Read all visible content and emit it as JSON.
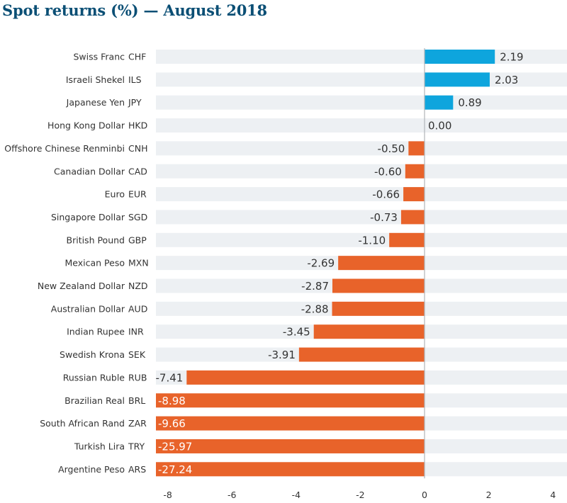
{
  "chart_data": {
    "type": "bar",
    "orientation": "horizontal",
    "title": "Spot returns (%) — August 2018",
    "xlabel": "",
    "ylabel": "",
    "xlim": [
      -8,
      4
    ],
    "xticks": [
      -8,
      -6,
      -4,
      -2,
      0,
      2,
      4
    ],
    "clip_min": -8,
    "grid": false,
    "colors": {
      "positive": "#0ea5dd",
      "negative": "#e8632a",
      "track": "#edf0f3",
      "axis": "#b0b4b8"
    },
    "categories": [
      {
        "name": "Swiss Franc",
        "code": "CHF",
        "value": 2.19,
        "label": "2.19"
      },
      {
        "name": "Israeli Shekel",
        "code": "ILS",
        "value": 2.03,
        "label": "2.03"
      },
      {
        "name": "Japanese Yen",
        "code": "JPY",
        "value": 0.89,
        "label": "0.89"
      },
      {
        "name": "Hong Kong Dollar",
        "code": "HKD",
        "value": 0.0,
        "label": "0.00"
      },
      {
        "name": "Offshore Chinese Renminbi",
        "code": "CNH",
        "value": -0.5,
        "label": "-0.50"
      },
      {
        "name": "Canadian Dollar",
        "code": "CAD",
        "value": -0.6,
        "label": "-0.60"
      },
      {
        "name": "Euro",
        "code": "EUR",
        "value": -0.66,
        "label": "-0.66"
      },
      {
        "name": "Singapore Dollar",
        "code": "SGD",
        "value": -0.73,
        "label": "-0.73"
      },
      {
        "name": "British Pound",
        "code": "GBP",
        "value": -1.1,
        "label": "-1.10"
      },
      {
        "name": "Mexican Peso",
        "code": "MXN",
        "value": -2.69,
        "label": "-2.69"
      },
      {
        "name": "New Zealand Dollar",
        "code": "NZD",
        "value": -2.87,
        "label": "-2.87"
      },
      {
        "name": "Australian Dollar",
        "code": "AUD",
        "value": -2.88,
        "label": "-2.88"
      },
      {
        "name": "Indian Rupee",
        "code": "INR",
        "value": -3.45,
        "label": "-3.45"
      },
      {
        "name": "Swedish Krona",
        "code": "SEK",
        "value": -3.91,
        "label": "-3.91"
      },
      {
        "name": "Russian Ruble",
        "code": "RUB",
        "value": -7.41,
        "label": "-7.41"
      },
      {
        "name": "Brazilian Real",
        "code": "BRL",
        "value": -8.98,
        "label": "-8.98"
      },
      {
        "name": "South African Rand",
        "code": "ZAR",
        "value": -9.66,
        "label": "-9.66"
      },
      {
        "name": "Turkish Lira",
        "code": "TRY",
        "value": -25.97,
        "label": "-25.97"
      },
      {
        "name": "Argentine Peso",
        "code": "ARS",
        "value": -27.24,
        "label": "-27.24"
      }
    ]
  }
}
